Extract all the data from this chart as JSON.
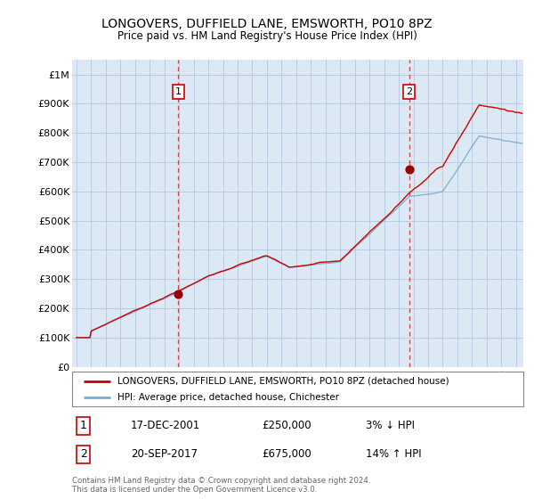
{
  "title": "LONGOVERS, DUFFIELD LANE, EMSWORTH, PO10 8PZ",
  "subtitle": "Price paid vs. HM Land Registry's House Price Index (HPI)",
  "ylabel_ticks": [
    "£0",
    "£100K",
    "£200K",
    "£300K",
    "£400K",
    "£500K",
    "£600K",
    "£700K",
    "£800K",
    "£900K",
    "£1M"
  ],
  "ytick_values": [
    0,
    100000,
    200000,
    300000,
    400000,
    500000,
    600000,
    700000,
    800000,
    900000,
    1000000
  ],
  "ylim": [
    0,
    1050000
  ],
  "xlim_start": 1994.7,
  "xlim_end": 2025.5,
  "legend_line1": "LONGOVERS, DUFFIELD LANE, EMSWORTH, PO10 8PZ (detached house)",
  "legend_line2": "HPI: Average price, detached house, Chichester",
  "transaction1_date": "17-DEC-2001",
  "transaction1_price": "£250,000",
  "transaction1_pct": "3% ↓ HPI",
  "transaction2_date": "20-SEP-2017",
  "transaction2_price": "£675,000",
  "transaction2_pct": "14% ↑ HPI",
  "footnote1": "Contains HM Land Registry data © Crown copyright and database right 2024.",
  "footnote2": "This data is licensed under the Open Government Licence v3.0.",
  "hpi_color": "#7aadd4",
  "price_color": "#cc0000",
  "marker_color": "#990000",
  "dashed_line_color": "#cc0000",
  "plot_bg_color": "#dce9f5",
  "background_color": "#ffffff",
  "grid_color": "#b0c8e0"
}
